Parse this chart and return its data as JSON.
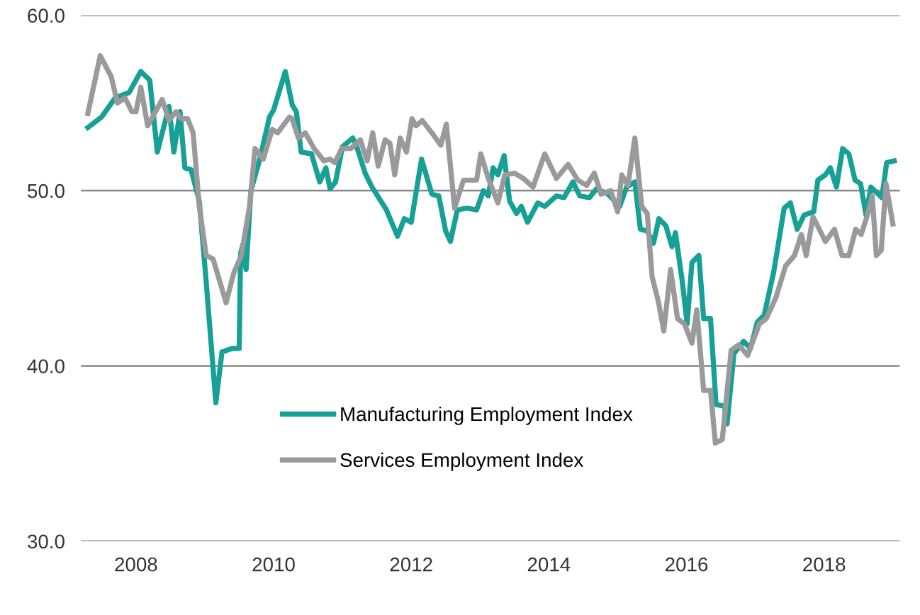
{
  "chart_data": {
    "type": "line",
    "xlim": [
      2007.2,
      2019.1
    ],
    "ylim": [
      30,
      60
    ],
    "xticks": [
      2008,
      2010,
      2012,
      2014,
      2016,
      2018
    ],
    "yticks": [
      {
        "value": 30,
        "label": "30.0"
      },
      {
        "value": 40,
        "label": "40.0"
      },
      {
        "value": 50,
        "label": "50.0"
      },
      {
        "value": 60,
        "label": "60.0"
      }
    ],
    "grid": "y",
    "legend": "bottom",
    "line_style": "solid",
    "marker": "none",
    "series": [
      {
        "name": "Manufacturing Employment Index",
        "color": "#17a096",
        "x": [
          2007.3,
          2007.5,
          2007.7,
          2007.9,
          2008.07,
          2008.2,
          2008.31,
          2008.48,
          2008.55,
          2008.64,
          2008.71,
          2008.8,
          2008.92,
          2009.02,
          2009.16,
          2009.25,
          2009.4,
          2009.5,
          2009.52,
          2009.55,
          2009.6,
          2009.67,
          2009.8,
          2009.94,
          2010.0,
          2010.17,
          2010.27,
          2010.33,
          2010.4,
          2010.55,
          2010.67,
          2010.76,
          2010.82,
          2010.9,
          2011.0,
          2011.15,
          2011.2,
          2011.33,
          2011.43,
          2011.64,
          2011.8,
          2011.9,
          2012.0,
          2012.15,
          2012.3,
          2012.4,
          2012.5,
          2012.57,
          2012.67,
          2012.81,
          2012.95,
          2013.05,
          2013.12,
          2013.19,
          2013.26,
          2013.35,
          2013.43,
          2013.53,
          2013.6,
          2013.69,
          2013.84,
          2013.94,
          2014.11,
          2014.22,
          2014.35,
          2014.45,
          2014.59,
          2014.69,
          2014.86,
          2015.03,
          2015.13,
          2015.25,
          2015.33,
          2015.43,
          2015.52,
          2015.6,
          2015.7,
          2015.79,
          2015.84,
          2015.94,
          2016.01,
          2016.08,
          2016.18,
          2016.25,
          2016.35,
          2016.43,
          2016.55,
          2016.59,
          2016.69,
          2016.83,
          2016.93,
          2017.03,
          2017.13,
          2017.27,
          2017.42,
          2017.51,
          2017.61,
          2017.71,
          2017.85,
          2017.91,
          2018.02,
          2018.09,
          2018.18,
          2018.27,
          2018.36,
          2018.45,
          2018.53,
          2018.61,
          2018.68,
          2018.84,
          2018.91,
          2019.02
        ],
        "values": [
          53.6,
          54.2,
          55.3,
          55.6,
          56.8,
          56.3,
          52.2,
          54.8,
          52.2,
          54.5,
          51.3,
          51.2,
          49.4,
          44.8,
          37.9,
          40.8,
          41.0,
          41.0,
          46.4,
          46.9,
          45.5,
          50.0,
          51.8,
          54.2,
          54.6,
          56.8,
          54.9,
          54.5,
          52.2,
          52.1,
          50.5,
          51.3,
          50.1,
          50.5,
          52.5,
          53.0,
          52.6,
          51.0,
          50.2,
          48.9,
          47.4,
          48.4,
          48.2,
          51.8,
          49.8,
          49.7,
          47.7,
          47.1,
          48.9,
          49.0,
          48.9,
          50.0,
          49.7,
          51.3,
          50.9,
          52.0,
          49.4,
          48.7,
          49.1,
          48.2,
          49.3,
          49.1,
          49.7,
          49.6,
          50.5,
          49.7,
          49.6,
          50.1,
          49.8,
          49.1,
          50.2,
          50.5,
          47.8,
          47.7,
          47.0,
          48.4,
          48.0,
          46.8,
          47.6,
          44.8,
          42.4,
          45.9,
          46.3,
          42.7,
          42.7,
          37.8,
          37.7,
          36.7,
          40.7,
          41.4,
          41.0,
          42.5,
          42.9,
          45.4,
          49.0,
          49.3,
          47.8,
          48.6,
          48.8,
          50.6,
          50.9,
          51.3,
          50.2,
          52.4,
          52.1,
          50.6,
          50.4,
          48.6,
          50.2,
          49.6,
          51.6,
          51.7
        ]
      },
      {
        "name": "Services Employment Index",
        "color": "#9a9a9a",
        "x": [
          2007.3,
          2007.48,
          2007.64,
          2007.73,
          2007.84,
          2007.94,
          2008.0,
          2008.07,
          2008.17,
          2008.38,
          2008.48,
          2008.58,
          2008.66,
          2008.75,
          2008.83,
          2008.92,
          2009.02,
          2009.12,
          2009.31,
          2009.42,
          2009.53,
          2009.65,
          2009.73,
          2009.85,
          2009.98,
          2010.06,
          2010.23,
          2010.27,
          2010.36,
          2010.46,
          2010.59,
          2010.73,
          2010.82,
          2010.89,
          2010.99,
          2011.12,
          2011.26,
          2011.36,
          2011.44,
          2011.52,
          2011.62,
          2011.69,
          2011.76,
          2011.84,
          2011.93,
          2012.01,
          2012.07,
          2012.16,
          2012.3,
          2012.43,
          2012.51,
          2012.63,
          2012.76,
          2012.84,
          2012.95,
          2013.01,
          2013.12,
          2013.26,
          2013.36,
          2013.5,
          2013.63,
          2013.77,
          2013.94,
          2014.11,
          2014.28,
          2014.42,
          2014.55,
          2014.66,
          2014.76,
          2014.9,
          2015.0,
          2015.06,
          2015.15,
          2015.25,
          2015.35,
          2015.43,
          2015.5,
          2015.59,
          2015.67,
          2015.77,
          2015.87,
          2015.97,
          2016.08,
          2016.15,
          2016.25,
          2016.35,
          2016.42,
          2016.52,
          2016.65,
          2016.76,
          2016.89,
          2017.06,
          2017.16,
          2017.3,
          2017.44,
          2017.57,
          2017.67,
          2017.74,
          2017.84,
          2018.02,
          2018.15,
          2018.26,
          2018.36,
          2018.46,
          2018.54,
          2018.63,
          2018.7,
          2018.76,
          2018.83,
          2018.9,
          2019.0
        ],
        "values": [
          54.4,
          57.7,
          56.5,
          55.0,
          55.3,
          54.5,
          54.5,
          55.9,
          53.7,
          55.2,
          54.0,
          54.5,
          54.1,
          54.1,
          53.3,
          49.1,
          46.3,
          46.1,
          43.6,
          45.3,
          46.3,
          49.1,
          52.4,
          51.8,
          53.5,
          53.3,
          54.2,
          54.1,
          53.0,
          53.3,
          52.4,
          51.7,
          51.8,
          51.6,
          52.4,
          52.4,
          52.9,
          51.7,
          53.3,
          51.4,
          52.9,
          52.7,
          50.9,
          53.0,
          52.2,
          54.1,
          53.7,
          54.0,
          53.3,
          52.6,
          53.8,
          49.0,
          50.6,
          50.6,
          50.6,
          52.1,
          50.7,
          49.3,
          50.9,
          51.0,
          50.7,
          50.2,
          52.1,
          50.7,
          51.5,
          50.6,
          50.3,
          51.0,
          49.8,
          50.0,
          48.8,
          50.9,
          50.3,
          53.0,
          49.1,
          48.7,
          45.1,
          43.7,
          42.0,
          45.5,
          42.7,
          42.4,
          41.3,
          43.2,
          38.6,
          38.6,
          35.6,
          35.8,
          40.9,
          41.2,
          40.6,
          42.4,
          42.7,
          43.9,
          45.7,
          46.3,
          47.5,
          46.3,
          48.5,
          47.1,
          47.8,
          46.3,
          46.3,
          47.8,
          47.5,
          48.6,
          49.7,
          46.3,
          46.6,
          50.4,
          48.1
        ]
      }
    ]
  }
}
